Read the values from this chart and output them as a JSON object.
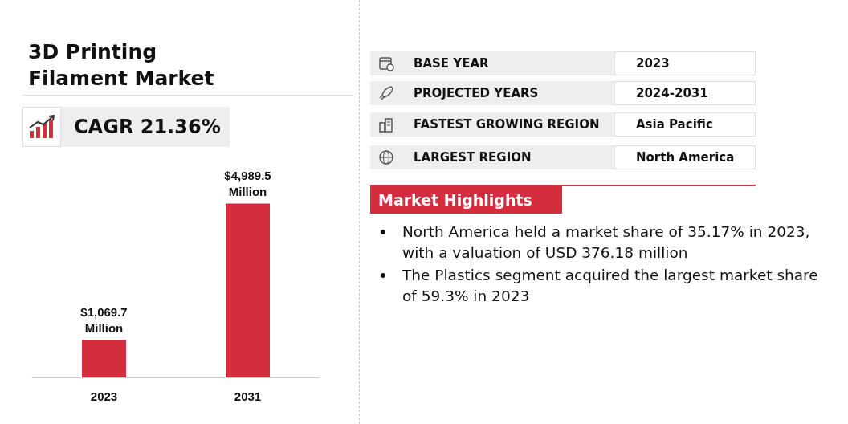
{
  "chart_data": [
    {
      "type": "bar",
      "title": "3D Printing Filament Market",
      "annotations": [
        "CAGR 21.36%"
      ],
      "categories": [
        "2023",
        "2031"
      ],
      "values": [
        1069.7,
        4989.5
      ],
      "color": "#d42d3e",
      "value_labels": [
        "$1,069.7 Million",
        "$4,989.5 Million"
      ]
    },
    {
      "type": "other",
      "title": "Market Highlights",
      "categories": [
        "BASE YEAR",
        "PROJECTED YEARS",
        "FASTEST GROWING REGION",
        "LARGEST REGION"
      ],
      "annotations": [
        "2023",
        "2024-2031",
        "Asia Pacific",
        "North America",
        "North America held a market share of 35.17% in 2023, with a valuation of USD 376.18 million",
        "The Plastics segment acquired the largest market share of 59.3% in 2023"
      ]
    }
  ]
}
